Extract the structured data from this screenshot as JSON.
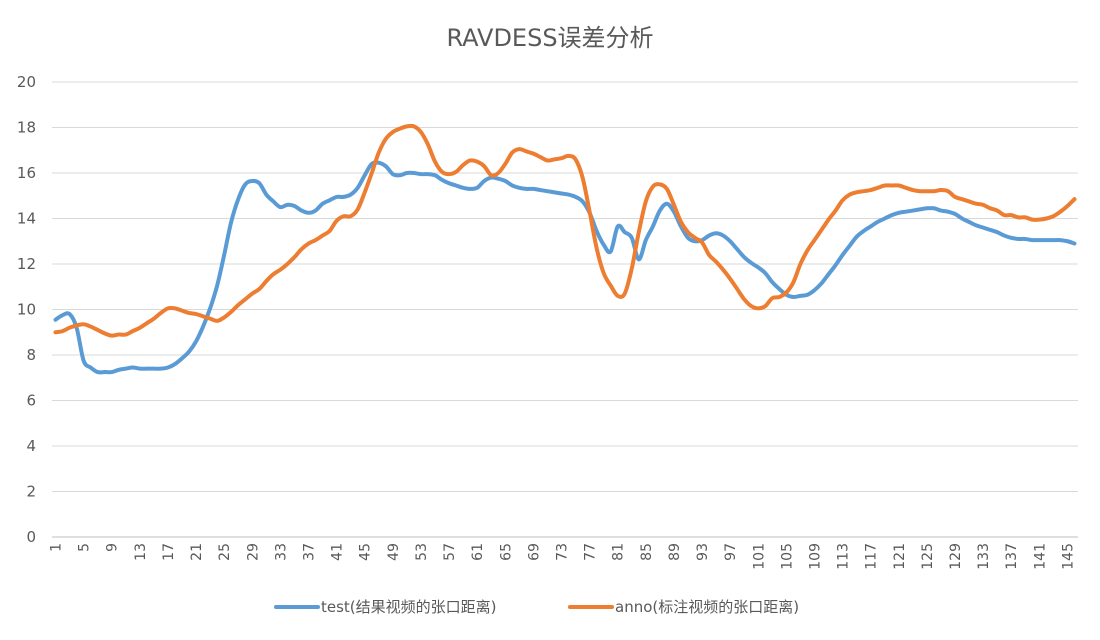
{
  "chart_data": {
    "type": "line",
    "title": "RAVDESS误差分析",
    "xlabel": "",
    "ylabel": "",
    "ylim": [
      0,
      20
    ],
    "yticks": [
      0,
      2,
      4,
      6,
      8,
      10,
      12,
      14,
      16,
      18,
      20
    ],
    "x": [
      1,
      2,
      3,
      4,
      5,
      6,
      7,
      8,
      9,
      10,
      11,
      12,
      13,
      14,
      15,
      16,
      17,
      18,
      19,
      20,
      21,
      22,
      23,
      24,
      25,
      26,
      27,
      28,
      29,
      30,
      31,
      32,
      33,
      34,
      35,
      36,
      37,
      38,
      39,
      40,
      41,
      42,
      43,
      44,
      45,
      46,
      47,
      48,
      49,
      50,
      51,
      52,
      53,
      54,
      55,
      56,
      57,
      58,
      59,
      60,
      61,
      62,
      63,
      64,
      65,
      66,
      67,
      68,
      69,
      70,
      71,
      72,
      73,
      74,
      75,
      76,
      77,
      78,
      79,
      80,
      81,
      82,
      83,
      84,
      85,
      86,
      87,
      88,
      89,
      90,
      91,
      92,
      93,
      94,
      95,
      96,
      97,
      98,
      99,
      100,
      101,
      102,
      103,
      104,
      105,
      106,
      107,
      108,
      109,
      110,
      111,
      112,
      113,
      114,
      115,
      116,
      117,
      118,
      119,
      120,
      121,
      122,
      123,
      124,
      125,
      126,
      127,
      128,
      129,
      130,
      131,
      132,
      133,
      134,
      135,
      136,
      137,
      138,
      139,
      140,
      141,
      142,
      143,
      144,
      145,
      146
    ],
    "xtick_labels": [
      "1",
      "5",
      "9",
      "13",
      "17",
      "21",
      "25",
      "29",
      "33",
      "37",
      "41",
      "45",
      "49",
      "53",
      "57",
      "61",
      "65",
      "69",
      "73",
      "77",
      "81",
      "85",
      "89",
      "93",
      "97",
      "101",
      "105",
      "109",
      "113",
      "117",
      "121",
      "125",
      "129",
      "133",
      "137",
      "141",
      "145"
    ],
    "legend_position": "bottom",
    "grid": true,
    "series": [
      {
        "name": "test(结果视频的张口距离)",
        "color": "#5b9bd5",
        "values": [
          9.55,
          9.75,
          9.8,
          9.2,
          7.75,
          7.45,
          7.25,
          7.25,
          7.25,
          7.35,
          7.4,
          7.45,
          7.4,
          7.4,
          7.4,
          7.4,
          7.45,
          7.6,
          7.85,
          8.15,
          8.6,
          9.25,
          10.05,
          11.05,
          12.4,
          13.85,
          14.85,
          15.5,
          15.65,
          15.55,
          15.05,
          14.75,
          14.5,
          14.6,
          14.55,
          14.35,
          14.25,
          14.35,
          14.65,
          14.8,
          14.95,
          14.95,
          15.05,
          15.35,
          15.9,
          16.4,
          16.45,
          16.3,
          15.95,
          15.9,
          16.0,
          16.0,
          15.95,
          15.95,
          15.9,
          15.7,
          15.55,
          15.45,
          15.35,
          15.3,
          15.35,
          15.65,
          15.8,
          15.75,
          15.65,
          15.45,
          15.35,
          15.3,
          15.3,
          15.25,
          15.2,
          15.15,
          15.1,
          15.05,
          14.95,
          14.75,
          14.25,
          13.45,
          12.85,
          12.55,
          13.65,
          13.4,
          13.15,
          12.2,
          13.05,
          13.65,
          14.35,
          14.65,
          14.3,
          13.65,
          13.15,
          13.0,
          13.05,
          13.25,
          13.35,
          13.25,
          13.0,
          12.65,
          12.3,
          12.05,
          11.85,
          11.6,
          11.2,
          10.9,
          10.65,
          10.55,
          10.6,
          10.65,
          10.85,
          11.15,
          11.55,
          11.95,
          12.4,
          12.8,
          13.2,
          13.45,
          13.65,
          13.85,
          14.0,
          14.15,
          14.25,
          14.3,
          14.35,
          14.4,
          14.45,
          14.45,
          14.35,
          14.3,
          14.2,
          14.0,
          13.85,
          13.7,
          13.6,
          13.5,
          13.4,
          13.25,
          13.15,
          13.1,
          13.1,
          13.05,
          13.05,
          13.05,
          13.05,
          13.05,
          13.0,
          12.9
        ]
      },
      {
        "name": "anno(标注视频的张口距离)",
        "color": "#ed7d31",
        "values": [
          9.0,
          9.05,
          9.2,
          9.3,
          9.35,
          9.25,
          9.1,
          8.95,
          8.85,
          8.9,
          8.9,
          9.05,
          9.2,
          9.4,
          9.6,
          9.85,
          10.05,
          10.05,
          9.95,
          9.85,
          9.8,
          9.7,
          9.6,
          9.5,
          9.65,
          9.9,
          10.2,
          10.45,
          10.7,
          10.9,
          11.25,
          11.55,
          11.75,
          12.0,
          12.3,
          12.65,
          12.9,
          13.05,
          13.25,
          13.45,
          13.9,
          14.1,
          14.1,
          14.4,
          15.15,
          16.0,
          16.9,
          17.5,
          17.8,
          17.95,
          18.05,
          18.05,
          17.8,
          17.25,
          16.5,
          16.05,
          15.95,
          16.05,
          16.35,
          16.55,
          16.5,
          16.3,
          15.9,
          16.0,
          16.4,
          16.9,
          17.05,
          16.95,
          16.85,
          16.7,
          16.55,
          16.6,
          16.65,
          16.75,
          16.6,
          15.8,
          14.3,
          12.7,
          11.6,
          11.05,
          10.6,
          10.7,
          11.8,
          13.4,
          14.75,
          15.4,
          15.5,
          15.3,
          14.6,
          13.85,
          13.4,
          13.15,
          12.95,
          12.4,
          12.1,
          11.75,
          11.35,
          10.9,
          10.45,
          10.15,
          10.05,
          10.15,
          10.5,
          10.55,
          10.75,
          11.2,
          12.0,
          12.6,
          13.05,
          13.5,
          13.95,
          14.35,
          14.8,
          15.05,
          15.15,
          15.2,
          15.25,
          15.35,
          15.45,
          15.45,
          15.45,
          15.35,
          15.25,
          15.2,
          15.2,
          15.2,
          15.25,
          15.2,
          14.95,
          14.85,
          14.75,
          14.65,
          14.6,
          14.45,
          14.35,
          14.15,
          14.15,
          14.05,
          14.05,
          13.95,
          13.95,
          14.0,
          14.1,
          14.3,
          14.55,
          14.85
        ]
      }
    ]
  }
}
